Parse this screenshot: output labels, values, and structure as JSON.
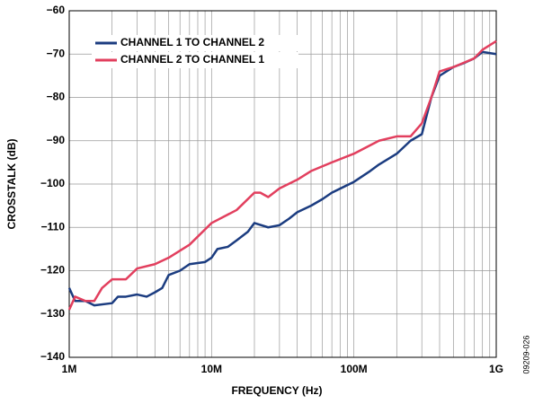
{
  "chart_data": {
    "type": "line",
    "xlabel": "FREQUENCY (Hz)",
    "ylabel": "CROSSTALK (dB)",
    "note": "09209-026",
    "xscale": "log",
    "grid": true,
    "legend": "upper left",
    "xlim": [
      1000000,
      1000000000
    ],
    "ylim": [
      -140,
      -60
    ],
    "xticks": [
      {
        "value": 1000000,
        "label": "1M"
      },
      {
        "value": 10000000,
        "label": "10M"
      },
      {
        "value": 100000000,
        "label": "100M"
      },
      {
        "value": 1000000000,
        "label": "1G"
      }
    ],
    "yticks": [
      {
        "value": -140,
        "label": "−140"
      },
      {
        "value": -130,
        "label": "−130"
      },
      {
        "value": -120,
        "label": "−120"
      },
      {
        "value": -110,
        "label": "−110"
      },
      {
        "value": -100,
        "label": "−100"
      },
      {
        "value": -90,
        "label": "−90"
      },
      {
        "value": -80,
        "label": "−80"
      },
      {
        "value": -70,
        "label": "−70"
      },
      {
        "value": -60,
        "label": "−60"
      }
    ],
    "series": [
      {
        "name": "CHANNEL 1 TO CHANNEL 2",
        "color": "#1b3c80",
        "x": [
          1000000,
          1100000,
          1300000,
          1500000,
          2000000,
          2200000,
          2500000,
          3000000,
          3500000,
          4000000,
          4500000,
          5000000,
          6000000,
          7000000,
          9000000,
          10000000,
          11000000,
          13000000,
          15000000,
          18000000,
          20000000,
          25000000,
          30000000,
          35000000,
          40000000,
          50000000,
          60000000,
          70000000,
          100000000,
          130000000,
          150000000,
          200000000,
          250000000,
          300000000,
          350000000,
          400000000,
          500000000,
          600000000,
          700000000,
          800000000,
          1000000000
        ],
        "values": [
          -124,
          -127,
          -127,
          -128,
          -127.5,
          -126,
          -126,
          -125.5,
          -126,
          -125,
          -124,
          -121,
          -120,
          -118.5,
          -118,
          -117,
          -115,
          -114.5,
          -113,
          -111,
          -109,
          -110,
          -109.5,
          -108,
          -106.5,
          -105,
          -103.5,
          -102,
          -99.5,
          -97,
          -95.5,
          -93,
          -90,
          -88.5,
          -80,
          -75,
          -73,
          -72,
          -71,
          -69.5,
          -70
        ]
      },
      {
        "name": "CHANNEL 2 TO CHANNEL 1",
        "color": "#e23f5e",
        "x": [
          1000000,
          1100000,
          1300000,
          1500000,
          1700000,
          2000000,
          2500000,
          3000000,
          4000000,
          5000000,
          7000000,
          10000000,
          15000000,
          20000000,
          22000000,
          25000000,
          30000000,
          40000000,
          50000000,
          70000000,
          100000000,
          150000000,
          200000000,
          250000000,
          300000000,
          350000000,
          400000000,
          500000000,
          700000000,
          800000000,
          1000000000
        ],
        "values": [
          -129,
          -126,
          -127,
          -127,
          -124,
          -122,
          -122,
          -119.5,
          -118.5,
          -117,
          -114,
          -109,
          -106,
          -102,
          -102,
          -103,
          -101,
          -99,
          -97,
          -95,
          -93,
          -90,
          -89,
          -89,
          -86,
          -80,
          -74,
          -73,
          -71,
          -69,
          -67
        ]
      }
    ]
  }
}
